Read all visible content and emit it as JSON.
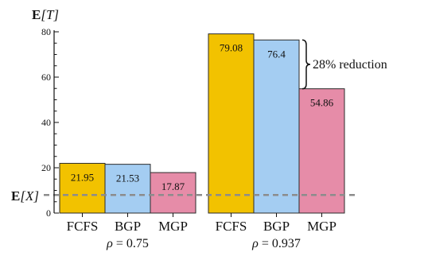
{
  "chart_data": {
    "type": "bar",
    "title": "",
    "ylabel_bold": "E",
    "ylabel_rest": "[T]",
    "ylim": [
      0,
      80
    ],
    "yticks": [
      0,
      20,
      40,
      60,
      80
    ],
    "grid": false,
    "groups": [
      {
        "label_rho": "ρ",
        "label_rest": " = 0.75",
        "bars": [
          {
            "category": "FCFS",
            "value": 21.95,
            "label": "21.95",
            "color": "#f2c200"
          },
          {
            "category": "BGP",
            "value": 21.53,
            "label": "21.53",
            "color": "#a4cdf2"
          },
          {
            "category": "MGP",
            "value": 17.87,
            "label": "17.87",
            "color": "#e68ca8"
          }
        ]
      },
      {
        "label_rho": "ρ",
        "label_rest": " = 0.937",
        "bars": [
          {
            "category": "FCFS",
            "value": 79.08,
            "label": "79.08",
            "color": "#f2c200"
          },
          {
            "category": "BGP",
            "value": 76.4,
            "label": "76.4",
            "color": "#a4cdf2"
          },
          {
            "category": "MGP",
            "value": 54.86,
            "label": "54.86",
            "color": "#e68ca8"
          }
        ]
      }
    ],
    "reference_line": {
      "value": 8.0,
      "label_bold": "E",
      "label_rest": "[X]",
      "color": "#8c8c8c"
    },
    "annotation": {
      "text": "28% reduction",
      "from_value": 76.4,
      "to_value": 54.86
    }
  }
}
